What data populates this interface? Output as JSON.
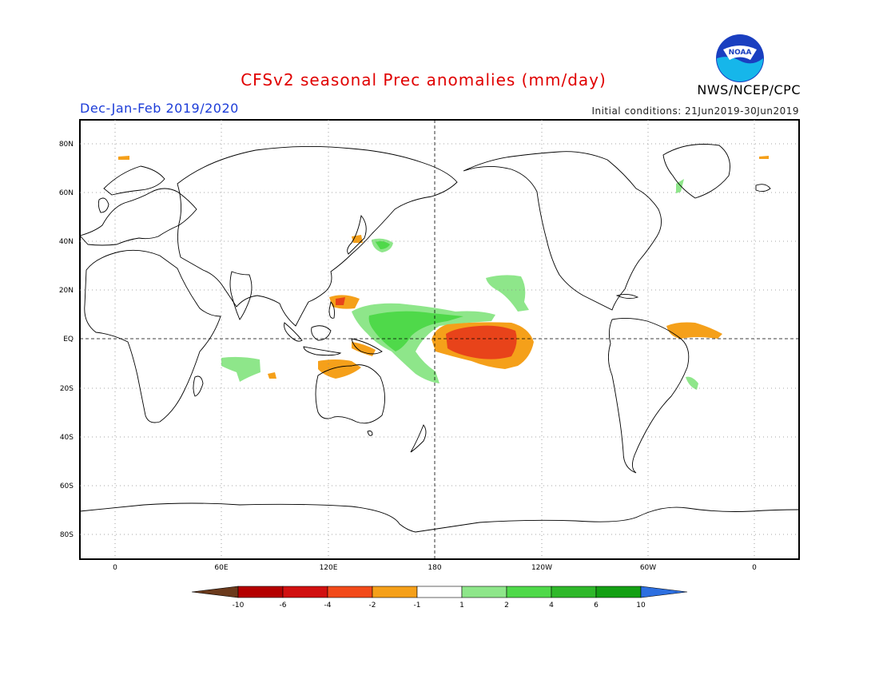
{
  "title": "CFSv2 seasonal Prec anomalies (mm/day)",
  "subtitle": "Dec-Jan-Feb 2019/2020",
  "initial_conditions": "Initial conditions: 21Jun2019-30Jun2019",
  "agency": "NWS/NCEP/CPC",
  "logo_text": "NOAA",
  "lat_labels": [
    "80N",
    "60N",
    "40N",
    "20N",
    "EQ",
    "20S",
    "40S",
    "60S",
    "80S"
  ],
  "lon_labels": [
    "0",
    "60E",
    "120E",
    "180",
    "120W",
    "60W",
    "0"
  ],
  "colorbar": {
    "labels": [
      "-10",
      "-6",
      "-4",
      "-2",
      "-1",
      "1",
      "2",
      "4",
      "6",
      "10"
    ],
    "colors": [
      "#6b3a1c",
      "#b40000",
      "#d11010",
      "#f24a1a",
      "#f5a01a",
      "#ffffff",
      "#8ee68a",
      "#4fd94a",
      "#2fb82a",
      "#14a014",
      "#2d6fe0"
    ]
  },
  "colors": {
    "dry_strong": "#e8431a",
    "dry": "#f5a01a",
    "wet": "#8ee68a",
    "wet_strong": "#4fd94a"
  }
}
